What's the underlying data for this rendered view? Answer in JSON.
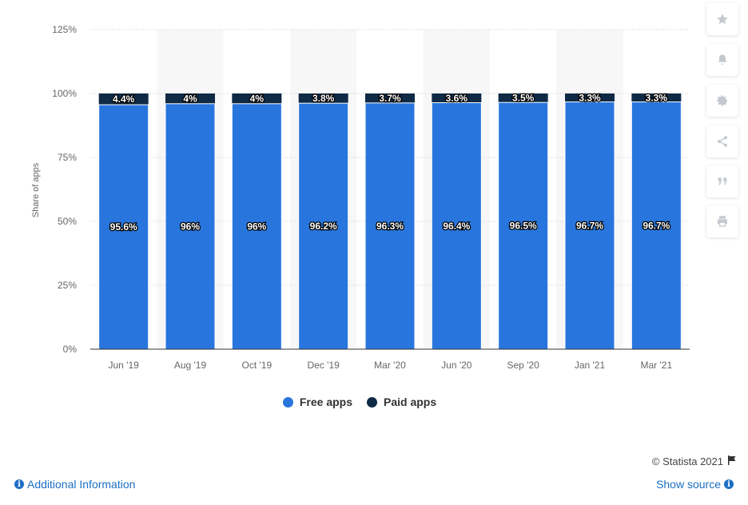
{
  "chart_data": {
    "type": "bar",
    "stacked": true,
    "categories": [
      "Jun '19",
      "Aug '19",
      "Oct '19",
      "Dec '19",
      "Mar '20",
      "Jun '20",
      "Sep '20",
      "Jan '21",
      "Mar '21"
    ],
    "series": [
      {
        "name": "Free apps",
        "color": "#2876dd",
        "values": [
          95.6,
          96,
          96,
          96.2,
          96.3,
          96.4,
          96.5,
          96.7,
          96.7
        ],
        "labels": [
          "95.6%",
          "96%",
          "96%",
          "96.2%",
          "96.3%",
          "96.4%",
          "96.5%",
          "96.7%",
          "96.7%"
        ]
      },
      {
        "name": "Paid apps",
        "color": "#0f2a44",
        "values": [
          4.4,
          4,
          4,
          3.8,
          3.7,
          3.6,
          3.5,
          3.3,
          3.3
        ],
        "labels": [
          "4.4%",
          "4%",
          "4%",
          "3.8%",
          "3.7%",
          "3.6%",
          "3.5%",
          "3.3%",
          "3.3%"
        ]
      }
    ],
    "ylabel": "Share of apps",
    "yticks": [
      "0%",
      "25%",
      "50%",
      "75%",
      "100%",
      "125%"
    ],
    "ylim": [
      0,
      125
    ],
    "grid": true,
    "legend_position": "bottom-center"
  },
  "legend": {
    "free_label": "Free apps",
    "paid_label": "Paid apps"
  },
  "toolbar": {
    "icons": [
      "star-icon",
      "bell-icon",
      "gear-icon",
      "share-icon",
      "quote-icon",
      "print-icon"
    ]
  },
  "footer": {
    "credits": "© Statista 2021",
    "additional_info": "Additional Information",
    "show_source": "Show source"
  },
  "colors": {
    "free": "#2876dd",
    "paid": "#0f2a44",
    "link": "#1b6fc4",
    "band": "#f7f7f7"
  }
}
